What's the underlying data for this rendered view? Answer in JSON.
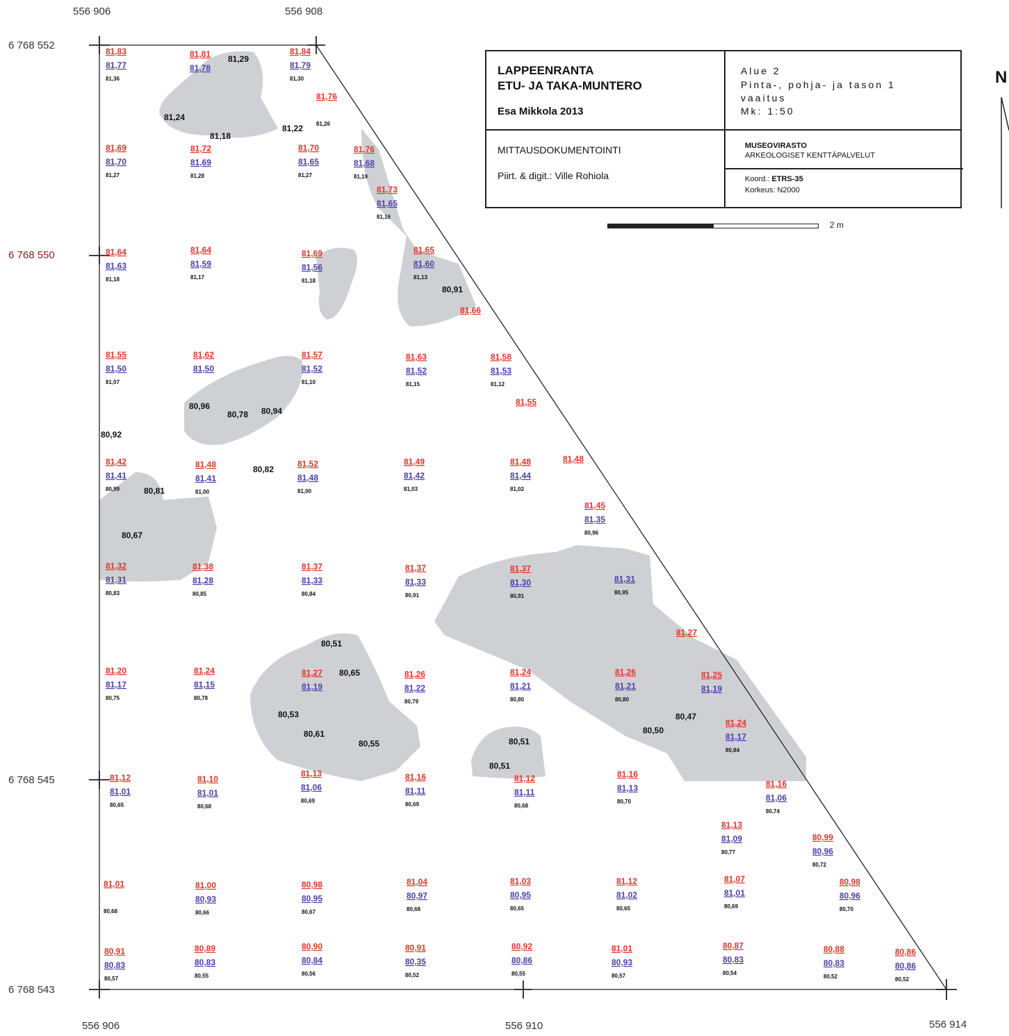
{
  "title_block": {
    "site_line1": "LAPPEENRANTA",
    "site_line2": "ETU- JA TAKA-MUNTERO",
    "author_year": "Esa Mikkola 2013",
    "area": "Alue 2",
    "description_line1": "Pinta-, pohja- ja tason 1",
    "description_line2": "vaaitus",
    "scale_text": "Mk: 1:50",
    "doc_type": "MITTAUSDOKUMENTOINTI",
    "drawn_by": "Piirt. & digit.: Ville Rohiola",
    "org_line1": "MUSEOVIRASTO",
    "org_line2": "ARKEOLOGISET KENTTÄPALVELUT",
    "coord_label": "Koord.:",
    "coord_value": "ETRS-35",
    "height_label": "Korkeus:",
    "height_value": "N2000"
  },
  "scale_bar": {
    "label": "2 m"
  },
  "north_arrow": {
    "label": "N"
  },
  "axes": {
    "x_top": [
      "556 906",
      "556 908"
    ],
    "x_bottom": [
      "556 906",
      "556 910",
      "556 914"
    ],
    "y_left": [
      "6 768 552",
      "6 768 550",
      "6 768 545",
      "6 768 543"
    ]
  },
  "colors": {
    "surface": "#e0352b",
    "base": "#4a3fa8",
    "level1": "#111111",
    "stone_fill": "#cfd0d4"
  },
  "points": [
    [
      "81,83",
      "81,77",
      "81,36"
    ],
    [
      "81,81",
      "81,78",
      ""
    ],
    [
      "81,84",
      "81,79",
      "81,30"
    ],
    [
      "81,76",
      "",
      "81,26"
    ],
    [
      "81,69",
      "81,70",
      "81,27"
    ],
    [
      "81,72",
      "81,69",
      "81,28"
    ],
    [
      "81,70",
      "81,65",
      "81,27"
    ],
    [
      "81,76",
      "81,68",
      "81,19"
    ],
    [
      "81,73",
      "81,65",
      "81,16"
    ],
    [
      "81,64",
      "81,63",
      "81,18"
    ],
    [
      "81,64",
      "81,59",
      "81,17"
    ],
    [
      "81,69",
      "81,56",
      "81,18"
    ],
    [
      "81,65",
      "81,60",
      "81,13"
    ],
    [
      "81,66",
      "",
      ""
    ],
    [
      "81,55",
      "81,50",
      "81,07"
    ],
    [
      "81,62",
      "81,50",
      ""
    ],
    [
      "81,57",
      "81,52",
      "81,10"
    ],
    [
      "81,63",
      "81,52",
      "81,15"
    ],
    [
      "81,58",
      "81,53",
      "81,12"
    ],
    [
      "81,55",
      "",
      ""
    ],
    [
      "81,42",
      "81,41",
      "80,99"
    ],
    [
      "81,48",
      "81,41",
      "81,00"
    ],
    [
      "81,52",
      "81,48",
      "81,00"
    ],
    [
      "81,49",
      "81,42",
      "81,03"
    ],
    [
      "81,48",
      "81,44",
      "81,02"
    ],
    [
      "81,48",
      "",
      ""
    ],
    [
      "81,45",
      "81,35",
      "80,96"
    ],
    [
      "81,32",
      "81,31",
      "80,83"
    ],
    [
      "81,38",
      "81,28",
      "80,85"
    ],
    [
      "81,37",
      "81,33",
      "80,84"
    ],
    [
      "81,37",
      "81,33",
      "80,91"
    ],
    [
      "81,37",
      "81,30",
      "80,91"
    ],
    [
      "",
      "81,31",
      "80,95"
    ],
    [
      "81,27",
      "",
      ""
    ],
    [
      "81,20",
      "81,17",
      "80,75"
    ],
    [
      "81,24",
      "81,15",
      "80,78"
    ],
    [
      "81,27",
      "81,19",
      ""
    ],
    [
      "81,26",
      "81,22",
      "80,79"
    ],
    [
      "81,24",
      "81,21",
      "80,80"
    ],
    [
      "81,26",
      "81,21",
      "80,80"
    ],
    [
      "81,25",
      "81,19",
      ""
    ],
    [
      "81,24",
      "81,17",
      "80,84"
    ],
    [
      "81,12",
      "81,01",
      "80,65"
    ],
    [
      "81,10",
      "81,01",
      "80,68"
    ],
    [
      "81,13",
      "81,06",
      "80,69"
    ],
    [
      "81,16",
      "81,11",
      "80,69"
    ],
    [
      "81,12",
      "81,11",
      "80,68"
    ],
    [
      "81,16",
      "81,13",
      "80,70"
    ],
    [
      "81,16",
      "81,06",
      "80,74"
    ],
    [
      "81,13",
      "81,09",
      "80,77"
    ],
    [
      "80,99",
      "80,96",
      "80,72"
    ],
    [
      "81,01",
      "",
      "80,68"
    ],
    [
      "81,00",
      "80,93",
      "80,66"
    ],
    [
      "80,98",
      "80,95",
      "80,67"
    ],
    [
      "81,04",
      "80,97",
      "80,68"
    ],
    [
      "81,03",
      "80,95",
      "80,65"
    ],
    [
      "81,12",
      "81,02",
      "80,65"
    ],
    [
      "81,07",
      "81,01",
      "80,69"
    ],
    [
      "80,98",
      "80,96",
      "80,70"
    ],
    [
      "80,91",
      "80,83",
      "80,57"
    ],
    [
      "80,89",
      "80,83",
      "80,55"
    ],
    [
      "80,90",
      "80,84",
      "80,56"
    ],
    [
      "80,91",
      "80,35",
      "80,52"
    ],
    [
      "80,92",
      "80,86",
      "80,55"
    ],
    [
      "81,01",
      "80,93",
      "80,57"
    ],
    [
      "80,87",
      "80,83",
      "80,54"
    ],
    [
      "80,88",
      "80,83",
      "80,52"
    ],
    [
      "80,86",
      "80,86",
      "80,52"
    ]
  ],
  "stone_levels": [
    "81,29",
    "81,24",
    "81,18",
    "81,22",
    "80,91",
    "80,96",
    "80,78",
    "80,94",
    "80,92",
    "80,82",
    "80,81",
    "80,67",
    "80,51",
    "80,65",
    "80,53",
    "80,61",
    "80,55",
    "80,51",
    "80,51",
    "80,47",
    "80,50"
  ]
}
